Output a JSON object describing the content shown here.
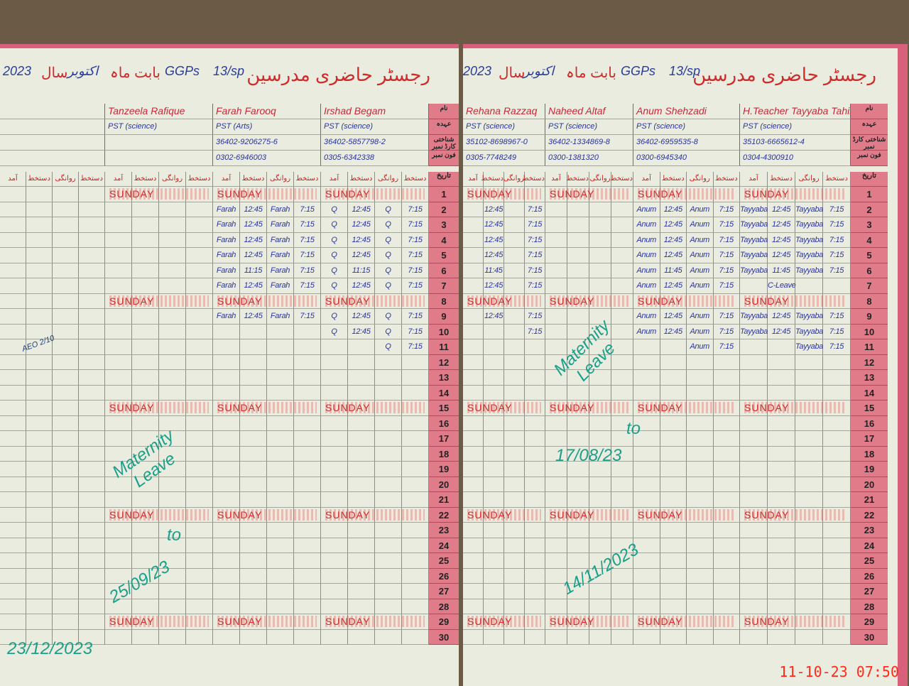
{
  "register_title": "رجسٹر حاضری مدرسین",
  "month_label": "بابت ماہ",
  "month": "اکتوبر",
  "year_label": "سال",
  "year": "2023",
  "school": "GGPs",
  "emis": "13/sp",
  "date_header": "تاریخ",
  "column_headers": [
    "آمد",
    "دستخط",
    "روانگی",
    "دستخط"
  ],
  "info_labels": [
    "نام",
    "عہدہ",
    "شناختی کارڈ نمبر",
    "فون نمبر"
  ],
  "sunday_label": "SUNDAY",
  "sunday_rows": [
    1,
    8,
    15,
    22,
    29
  ],
  "pages": [
    {
      "teachers": [
        {
          "name": "",
          "post": "",
          "cnic": "",
          "phone": "",
          "entries": []
        },
        {
          "name": "Tanzeela Rafique",
          "post": "PST (science)",
          "cnic": "",
          "phone": "",
          "entries": []
        },
        {
          "name": "Farah Farooq",
          "post": "PST (Arts)",
          "cnic": "36402-9206275-6",
          "phone": "0302-6946003",
          "entries": [
            {
              "day": 2,
              "v": [
                "Farah",
                "12:45",
                "Farah",
                "7:15"
              ]
            },
            {
              "day": 3,
              "v": [
                "Farah",
                "12:45",
                "Farah",
                "7:15"
              ]
            },
            {
              "day": 4,
              "v": [
                "Farah",
                "12:45",
                "Farah",
                "7:15"
              ]
            },
            {
              "day": 5,
              "v": [
                "Farah",
                "12:45",
                "Farah",
                "7:15"
              ]
            },
            {
              "day": 6,
              "v": [
                "Farah",
                "11:15",
                "Farah",
                "7:15"
              ]
            },
            {
              "day": 7,
              "v": [
                "Farah",
                "12:45",
                "Farah",
                "7:15"
              ]
            },
            {
              "day": 9,
              "v": [
                "Farah",
                "12:45",
                "Farah",
                "7:15"
              ]
            }
          ]
        },
        {
          "name": "Irshad Begam",
          "post": "PST (science)",
          "cnic": "36402-5857798-2",
          "phone": "0305-6342338",
          "entries": [
            {
              "day": 2,
              "v": [
                "Q",
                "12:45",
                "Q",
                "7:15"
              ]
            },
            {
              "day": 3,
              "v": [
                "Q",
                "12:45",
                "Q",
                "7:15"
              ]
            },
            {
              "day": 4,
              "v": [
                "Q",
                "12:45",
                "Q",
                "7:15"
              ]
            },
            {
              "day": 5,
              "v": [
                "Q",
                "12:45",
                "Q",
                "7:15"
              ]
            },
            {
              "day": 6,
              "v": [
                "Q",
                "11:15",
                "Q",
                "7:15"
              ]
            },
            {
              "day": 7,
              "v": [
                "Q",
                "12:45",
                "Q",
                "7:15"
              ]
            },
            {
              "day": 9,
              "v": [
                "Q",
                "12:45",
                "Q",
                "7:15"
              ]
            },
            {
              "day": 10,
              "v": [
                "Q",
                "12:45",
                "Q",
                "7:15"
              ]
            },
            {
              "day": 11,
              "v": [
                "",
                "",
                "Q",
                "7:15"
              ]
            }
          ]
        }
      ]
    },
    {
      "teachers": [
        {
          "name": "Rehana Razzaq",
          "post": "PST (science)",
          "cnic": "35102-8698967-0",
          "phone": "0305-7748249",
          "entries": [
            {
              "day": 2,
              "v": [
                "",
                "12:45",
                "",
                "7:15"
              ]
            },
            {
              "day": 3,
              "v": [
                "",
                "12:45",
                "",
                "7:15"
              ]
            },
            {
              "day": 4,
              "v": [
                "",
                "12:45",
                "",
                "7:15"
              ]
            },
            {
              "day": 5,
              "v": [
                "",
                "12:45",
                "",
                "7:15"
              ]
            },
            {
              "day": 6,
              "v": [
                "",
                "11:45",
                "",
                "7:15"
              ]
            },
            {
              "day": 7,
              "v": [
                "",
                "12:45",
                "",
                "7:15"
              ]
            },
            {
              "day": 9,
              "v": [
                "",
                "12:45",
                "",
                "7:15"
              ]
            },
            {
              "day": 10,
              "v": [
                "",
                "",
                "",
                "7:15"
              ]
            }
          ]
        },
        {
          "name": "Naheed Altaf",
          "post": "PST (science)",
          "cnic": "36402-1334869-8",
          "phone": "0300-1381320",
          "entries": []
        },
        {
          "name": "Anum Shehzadi",
          "post": "PST (science)",
          "cnic": "36402-6959535-8",
          "phone": "0300-6945340",
          "entries": [
            {
              "day": 2,
              "v": [
                "Anum",
                "12:45",
                "Anum",
                "7:15"
              ]
            },
            {
              "day": 3,
              "v": [
                "Anum",
                "12:45",
                "Anum",
                "7:15"
              ]
            },
            {
              "day": 4,
              "v": [
                "Anum",
                "12:45",
                "Anum",
                "7:15"
              ]
            },
            {
              "day": 5,
              "v": [
                "Anum",
                "12:45",
                "Anum",
                "7:15"
              ]
            },
            {
              "day": 6,
              "v": [
                "Anum",
                "11:45",
                "Anum",
                "7:15"
              ]
            },
            {
              "day": 7,
              "v": [
                "Anum",
                "12:45",
                "Anum",
                "7:15"
              ]
            },
            {
              "day": 9,
              "v": [
                "Anum",
                "12:45",
                "Anum",
                "7:15"
              ]
            },
            {
              "day": 10,
              "v": [
                "Anum",
                "12:45",
                "Anum",
                "7:15"
              ]
            },
            {
              "day": 11,
              "v": [
                "",
                "",
                "Anum",
                "7:15"
              ]
            }
          ]
        },
        {
          "name": "H.Teacher Tayyaba Tahir",
          "post": "PST (science)",
          "cnic": "35103-6665612-4",
          "phone": "0304-4300910",
          "entries": [
            {
              "day": 2,
              "v": [
                "Tayyaba",
                "12:45",
                "Tayyaba",
                "7:15"
              ]
            },
            {
              "day": 3,
              "v": [
                "Tayyaba",
                "12:45",
                "Tayyaba",
                "7:15"
              ]
            },
            {
              "day": 4,
              "v": [
                "Tayyaba",
                "12:45",
                "Tayyaba",
                "7:15"
              ]
            },
            {
              "day": 5,
              "v": [
                "Tayyaba",
                "12:45",
                "Tayyaba",
                "7:15"
              ]
            },
            {
              "day": 6,
              "v": [
                "Tayyaba",
                "11:45",
                "Tayyaba",
                "7:15"
              ]
            },
            {
              "day": 7,
              "v": [
                "",
                "C-Leave",
                "",
                ""
              ]
            },
            {
              "day": 9,
              "v": [
                "Tayyaba",
                "12:45",
                "Tayyaba",
                "7:15"
              ]
            },
            {
              "day": 10,
              "v": [
                "Tayyaba",
                "12:45",
                "Tayyaba",
                "7:15"
              ]
            },
            {
              "day": 11,
              "v": [
                "",
                "",
                "Tayyaba",
                "7:15"
              ]
            }
          ]
        }
      ]
    }
  ],
  "notes_left": {
    "leave": "Maternity Leave",
    "from": "25/09/23",
    "to_label": "to",
    "to": "23/12/2023",
    "signature": "AEO 2/10"
  },
  "notes_right": {
    "leave": "Maternity Leave",
    "from": "17/08/23",
    "to_label": "to",
    "to": "14/11/2023"
  },
  "photo_timestamp": "11-10-23 07:50"
}
